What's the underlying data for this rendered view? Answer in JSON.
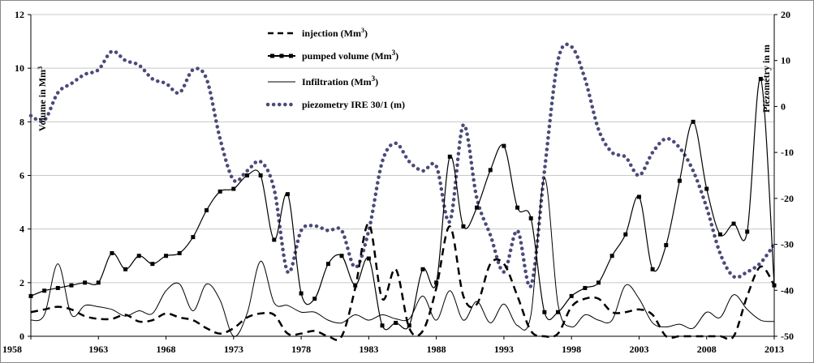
{
  "chart_data": {
    "type": "line",
    "title": "",
    "xlabel": "",
    "ylabel": "Volume in Mm³",
    "ylabel_right": "Piézométry in m",
    "xlim": [
      1958,
      2013
    ],
    "ylim": [
      0,
      12
    ],
    "ylim_right": [
      -50,
      20
    ],
    "x_ticks": [
      1958,
      1963,
      1968,
      1973,
      1978,
      1983,
      1988,
      1993,
      1998,
      2003,
      2008,
      2013
    ],
    "y_ticks_left": [
      0,
      2,
      4,
      6,
      8,
      10,
      12
    ],
    "y_ticks_right": [
      -50,
      -40,
      -30,
      -20,
      -10,
      0,
      10,
      20
    ],
    "grid": true,
    "legend": "top-center",
    "series": [
      {
        "name": "injection (Mm3)",
        "style": "dashed",
        "axis": "left",
        "color": "#000000",
        "x": [
          1958,
          1959,
          1960,
          1961,
          1962,
          1963,
          1964,
          1965,
          1966,
          1967,
          1968,
          1969,
          1970,
          1971,
          1972,
          1973,
          1974,
          1975,
          1976,
          1977,
          1978,
          1979,
          1980,
          1981,
          1982,
          1983,
          1984,
          1985,
          1986,
          1987,
          1988,
          1989,
          1990,
          1991,
          1992,
          1993,
          1994,
          1995,
          1996,
          1997,
          1998,
          1999,
          2000,
          2001,
          2002,
          2003,
          2004,
          2005,
          2006,
          2007,
          2008,
          2009,
          2010,
          2011,
          2012,
          2013
        ],
        "y": [
          0.9,
          1.0,
          1.1,
          1.0,
          0.75,
          0.65,
          0.65,
          0.8,
          0.55,
          0.6,
          0.85,
          0.7,
          0.6,
          0.3,
          0.1,
          0.3,
          0.7,
          0.85,
          0.8,
          0.1,
          0.1,
          0.2,
          0.0,
          0.0,
          1.8,
          4.2,
          1.4,
          2.5,
          0.3,
          0.2,
          1.8,
          4.1,
          1.5,
          1.2,
          2.7,
          2.7,
          1.5,
          0.2,
          0.0,
          0.1,
          1.1,
          1.4,
          1.4,
          0.9,
          0.9,
          1.0,
          0.8,
          0.0,
          0.0,
          0.0,
          0.0,
          0.0,
          0.0,
          1.5,
          2.6,
          1.9
        ]
      },
      {
        "name": "pumped volume (Mm3)",
        "style": "line-square-markers",
        "axis": "left",
        "color": "#000000",
        "x": [
          1958,
          1959,
          1960,
          1961,
          1962,
          1963,
          1964,
          1965,
          1966,
          1967,
          1968,
          1969,
          1970,
          1971,
          1972,
          1973,
          1974,
          1975,
          1976,
          1977,
          1978,
          1979,
          1980,
          1981,
          1982,
          1983,
          1984,
          1985,
          1986,
          1987,
          1988,
          1989,
          1990,
          1991,
          1992,
          1993,
          1994,
          1995,
          1996,
          1997,
          1998,
          1999,
          2000,
          2001,
          2002,
          2003,
          2004,
          2005,
          2006,
          2007,
          2008,
          2009,
          2010,
          2011,
          2012,
          2013
        ],
        "y": [
          1.5,
          1.7,
          1.8,
          1.9,
          2.0,
          2.0,
          3.1,
          2.5,
          3.0,
          2.7,
          3.0,
          3.1,
          3.7,
          4.7,
          5.4,
          5.5,
          6.0,
          6.0,
          3.6,
          5.3,
          1.6,
          1.4,
          2.7,
          3.0,
          1.9,
          2.9,
          0.4,
          0.5,
          0.4,
          2.5,
          2.0,
          6.7,
          4.1,
          4.8,
          6.2,
          7.1,
          4.8,
          4.4,
          0.9,
          0.9,
          1.5,
          1.8,
          2.0,
          3.0,
          3.8,
          5.2,
          2.5,
          3.4,
          5.8,
          8.0,
          5.5,
          3.8,
          4.2,
          3.9,
          9.6,
          1.9
        ]
      },
      {
        "name": "Infiltration (Mm3)",
        "style": "solid-thin",
        "axis": "left",
        "color": "#000000",
        "x": [
          1958,
          1959,
          1960,
          1961,
          1962,
          1963,
          1964,
          1965,
          1966,
          1967,
          1968,
          1969,
          1970,
          1971,
          1972,
          1973,
          1974,
          1975,
          1976,
          1977,
          1978,
          1979,
          1980,
          1981,
          1982,
          1983,
          1984,
          1985,
          1986,
          1987,
          1988,
          1989,
          1990,
          1991,
          1992,
          1993,
          1994,
          1995,
          1996,
          1997,
          1998,
          1999,
          2000,
          2001,
          2002,
          2003,
          2004,
          2005,
          2006,
          2007,
          2008,
          2009,
          2010,
          2011,
          2012,
          2013
        ],
        "y": [
          0.6,
          0.8,
          2.7,
          0.8,
          1.15,
          1.1,
          1.0,
          0.75,
          0.95,
          0.85,
          1.7,
          1.95,
          0.95,
          1.95,
          1.35,
          0.0,
          0.85,
          2.8,
          1.25,
          1.15,
          0.9,
          0.9,
          0.6,
          0.5,
          0.8,
          0.6,
          0.8,
          0.65,
          0.65,
          1.5,
          0.6,
          1.7,
          0.6,
          1.3,
          0.5,
          1.2,
          0.4,
          0.8,
          5.9,
          1.2,
          0.35,
          0.8,
          0.6,
          0.6,
          1.9,
          1.4,
          0.5,
          0.35,
          0.45,
          0.3,
          0.9,
          0.7,
          1.55,
          1.0,
          0.6,
          0.55
        ]
      },
      {
        "name": "piezometry IRE 30/1 (m)",
        "style": "dotted",
        "axis": "right",
        "color": "#4a4a7a",
        "x": [
          1958,
          1959,
          1960,
          1961,
          1962,
          1963,
          1964,
          1965,
          1966,
          1967,
          1968,
          1969,
          1970,
          1971,
          1972,
          1973,
          1974,
          1975,
          1976,
          1977,
          1978,
          1979,
          1980,
          1981,
          1982,
          1983,
          1984,
          1985,
          1986,
          1987,
          1988,
          1989,
          1990,
          1991,
          1992,
          1993,
          1994,
          1995,
          1996,
          1997,
          1998,
          1999,
          2000,
          2001,
          2002,
          2003,
          2004,
          2005,
          2006,
          2007,
          2008,
          2009,
          2010,
          2011,
          2012,
          2013
        ],
        "y": [
          -2,
          -3,
          3,
          5,
          7,
          8,
          12,
          10,
          9,
          6,
          5,
          3,
          8,
          6,
          -7,
          -16,
          -14,
          -12,
          -18,
          -36,
          -27,
          -26,
          -27,
          -27,
          -35,
          -27,
          -12,
          -8,
          -12,
          -14,
          -13,
          -25,
          -4,
          -20,
          -28,
          -36,
          -27,
          -39,
          -14,
          10,
          13,
          6,
          -5,
          -10,
          -11,
          -15,
          -10,
          -7,
          -9,
          -14,
          -22,
          -32,
          -37,
          -36,
          -34,
          -30
        ]
      }
    ]
  },
  "legend": {
    "items": [
      {
        "label": "injection (Mm",
        "sup": "3",
        "tail": ")"
      },
      {
        "label": "pumped volume (Mm",
        "sup": "3",
        "tail": ")"
      },
      {
        "label": "Infiltration (Mm",
        "sup": "3",
        "tail": ")"
      },
      {
        "label": "piezometry IRE 30/1 (m)",
        "sup": "",
        "tail": ""
      }
    ]
  },
  "axes": {
    "left_title_main": "Volume in Mm",
    "left_title_sup": "3",
    "right_title": "Piézométry in m"
  }
}
